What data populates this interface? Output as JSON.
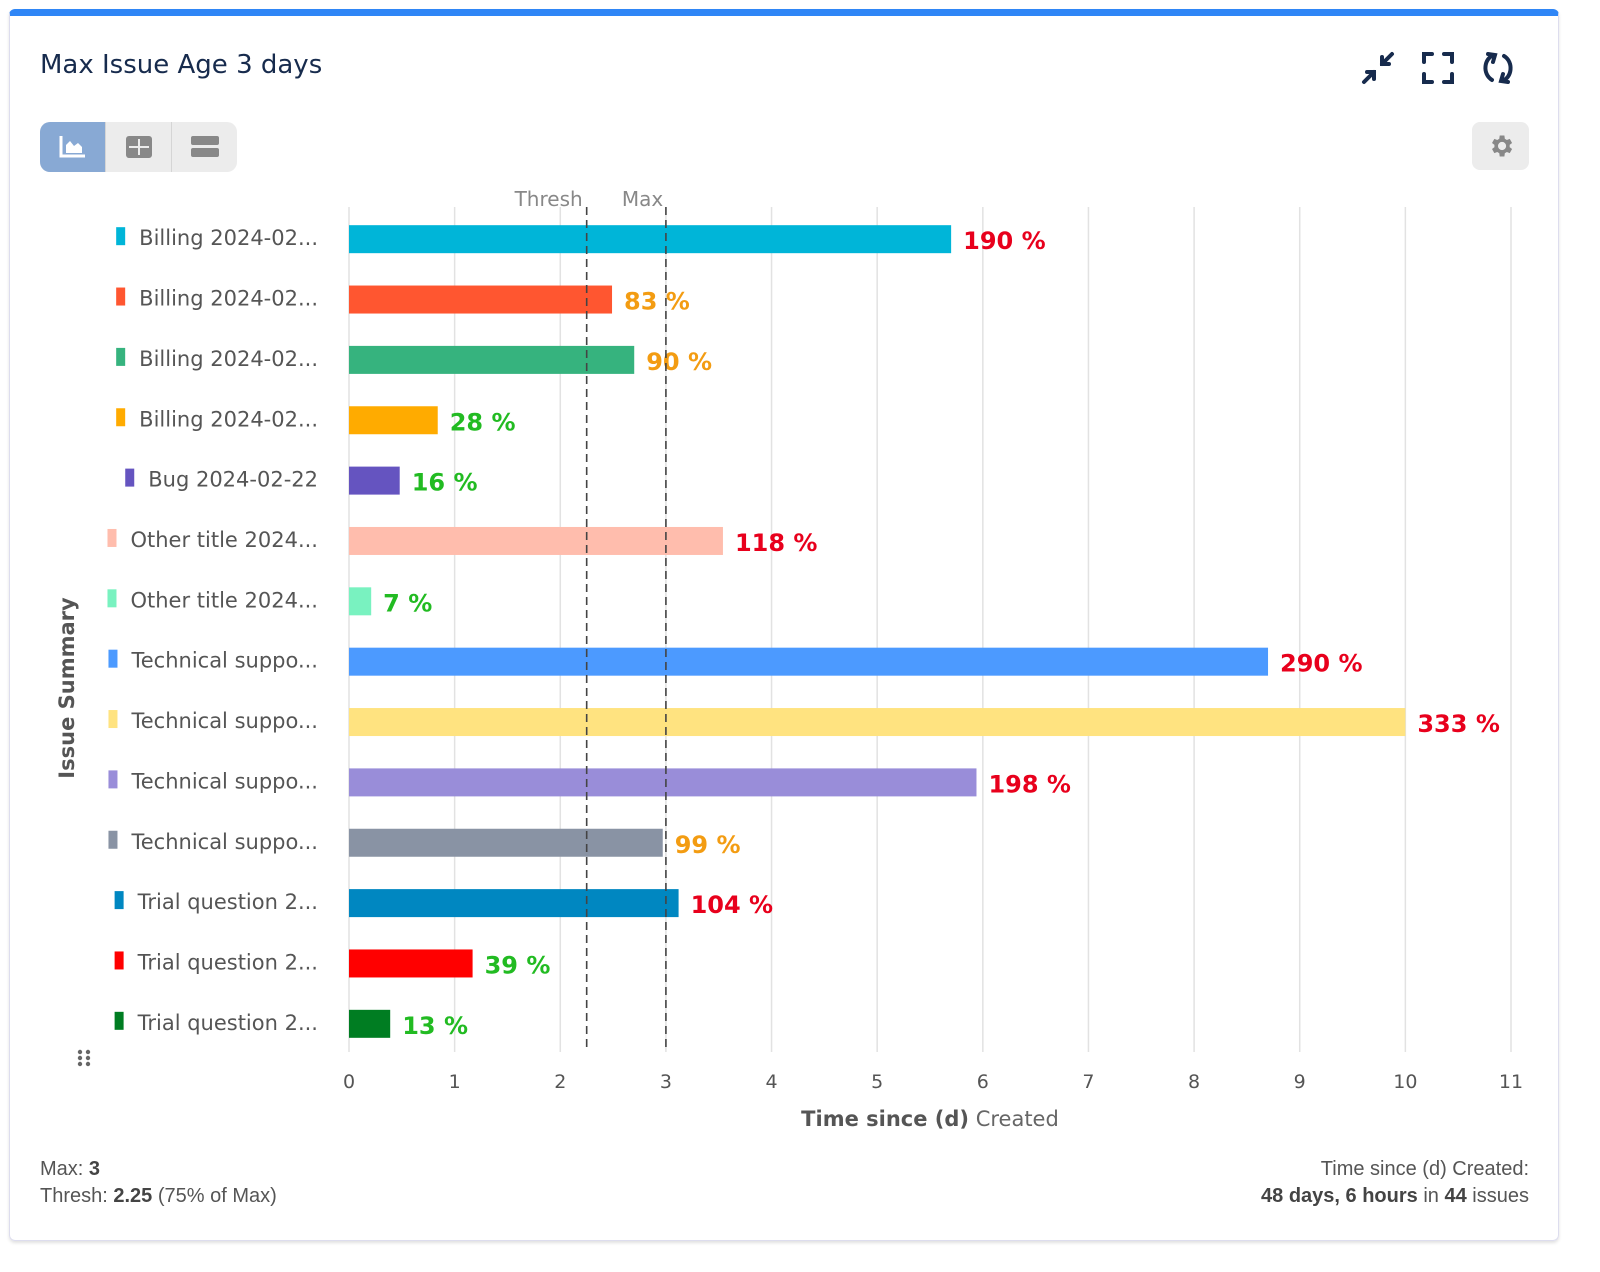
{
  "header": {
    "title": "Max Issue Age 3 days",
    "icons": [
      "collapse-icon",
      "fullscreen-icon",
      "refresh-icon"
    ]
  },
  "view_toggle": {
    "options": [
      "chart",
      "table",
      "list"
    ],
    "active": "chart"
  },
  "colors": {
    "accent": "#2f86f6",
    "over": "#e8001c",
    "near": "#f39c12",
    "under": "#22bb22"
  },
  "chart_data": {
    "type": "bar",
    "orientation": "horizontal",
    "categories": [
      "Billing 2024-02...",
      "Billing 2024-02...",
      "Billing 2024-02...",
      "Billing 2024-02...",
      "Bug 2024-02-22",
      "Other title 2024...",
      "Other title 2024...",
      "Technical suppo...",
      "Technical suppo...",
      "Technical suppo...",
      "Technical suppo...",
      "Trial question 2...",
      "Trial question 2...",
      "Trial question 2..."
    ],
    "values": [
      5.7,
      2.49,
      2.7,
      0.84,
      0.48,
      3.54,
      0.21,
      8.7,
      10,
      5.94,
      2.97,
      3.12,
      1.17,
      0.39
    ],
    "labels": [
      "190 %",
      "83 %",
      "90 %",
      "28 %",
      "16 %",
      "118 %",
      "7 %",
      "290 %",
      "333 %",
      "198 %",
      "99 %",
      "104 %",
      "39 %",
      "13 %"
    ],
    "percent": [
      190,
      83,
      90,
      28,
      16,
      118,
      7,
      290,
      333,
      198,
      99,
      104,
      39,
      13
    ],
    "bar_colors": [
      "#00b5d8",
      "#ff5630",
      "#36b37e",
      "#ffab00",
      "#6554c0",
      "#ffbdad",
      "#79f2c0",
      "#4c9aff",
      "#ffe380",
      "#998dd9",
      "#8993a4",
      "#0087c1",
      "#ff0000",
      "#007d22"
    ],
    "xlabel_bold": "Time since (d)",
    "xlabel_rest": "Created",
    "ylabel": "Issue Summary",
    "xlim": [
      0,
      11
    ],
    "xticks": [
      0,
      1,
      2,
      3,
      4,
      5,
      6,
      7,
      8,
      9,
      10,
      11
    ],
    "grid": true,
    "reference_lines": [
      {
        "label": "Thresh",
        "value": 2.25
      },
      {
        "label": "Max",
        "value": 3
      }
    ]
  },
  "footer": {
    "max_label": "Max:",
    "max_value": "3",
    "thresh_label": "Thresh:",
    "thresh_value": "2.25",
    "thresh_note": "(75% of Max)",
    "summary_label": "Time since (d) Created:",
    "summary_duration": "48 days, 6 hours",
    "summary_in": "in",
    "summary_count": "44",
    "summary_unit": "issues"
  }
}
